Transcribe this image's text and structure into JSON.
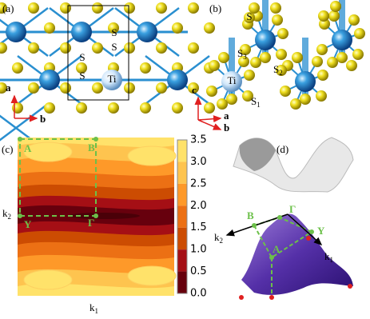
{
  "panel_a": {
    "label": "(a)",
    "atom_labels": [
      "S",
      "S",
      "S",
      "S",
      "Ti"
    ],
    "axis_labels": [
      "a",
      "b"
    ]
  },
  "panel_b": {
    "label": "(b)",
    "atom_label": "S",
    "ti_label": "Ti",
    "sub_labels": [
      {
        "text": "S",
        "sub": "3"
      },
      {
        "text": "S",
        "sub": "2"
      },
      {
        "text": "S",
        "sub": "1"
      }
    ],
    "axis_labels": [
      "c",
      "a",
      "b"
    ]
  },
  "panel_c": {
    "label": "(c)",
    "points": [
      "A",
      "B",
      "Y",
      "Γ"
    ],
    "x_label": {
      "text": "k",
      "sub": "1"
    },
    "y_label": {
      "text": "k",
      "sub": "2"
    },
    "colorbar_ticks": [
      "3.5",
      "3.0",
      "2.5",
      "2.0",
      "1.5",
      "1.0",
      "0.5",
      "0.0"
    ]
  },
  "panel_d": {
    "label": "(d)",
    "points": [
      "B",
      "Γ",
      "Y",
      "A"
    ],
    "k_labels": [
      {
        "text": "k",
        "sub": "2"
      },
      {
        "text": "k",
        "sub": "1"
      }
    ]
  }
}
